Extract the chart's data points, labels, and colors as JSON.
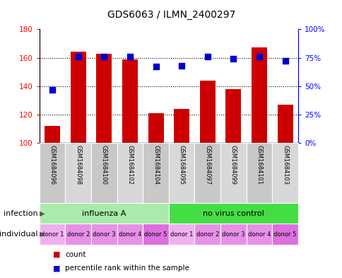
{
  "title": "GDS6063 / ILMN_2400297",
  "samples": [
    "GSM1684096",
    "GSM1684098",
    "GSM1684100",
    "GSM1684102",
    "GSM1684104",
    "GSM1684095",
    "GSM1684097",
    "GSM1684099",
    "GSM1684101",
    "GSM1684103"
  ],
  "counts": [
    112,
    164,
    163,
    159,
    121,
    124,
    144,
    138,
    167,
    127
  ],
  "percentiles": [
    47,
    76,
    76,
    76,
    67,
    68,
    76,
    74,
    76,
    72
  ],
  "ylim_left": [
    100,
    180
  ],
  "ylim_right": [
    0,
    100
  ],
  "yticks_left": [
    100,
    120,
    140,
    160,
    180
  ],
  "yticks_right": [
    0,
    25,
    50,
    75,
    100
  ],
  "ytick_labels_right": [
    "0%",
    "25%",
    "50%",
    "75%",
    "100%"
  ],
  "infection_groups": [
    {
      "label": "influenza A",
      "start": 0,
      "end": 5,
      "color": "#aaeaaa"
    },
    {
      "label": "no virus control",
      "start": 5,
      "end": 10,
      "color": "#44dd44"
    }
  ],
  "individuals": [
    "donor 1",
    "donor 2",
    "donor 3",
    "donor 4",
    "donor 5",
    "donor 1",
    "donor 2",
    "donor 3",
    "donor 4",
    "donor 5"
  ],
  "individual_colors": [
    "#f0b0f0",
    "#e890e8",
    "#e890e8",
    "#e890e8",
    "#dd70dd",
    "#f0b0f0",
    "#e890e8",
    "#e890e8",
    "#e890e8",
    "#dd70dd"
  ],
  "bar_color": "#cc0000",
  "dot_color": "#0000cc",
  "bar_width": 0.6,
  "legend_count_color": "#cc0000",
  "legend_dot_color": "#0000cc",
  "sample_colors_even": "#c8c8c8",
  "sample_colors_odd": "#d8d8d8"
}
